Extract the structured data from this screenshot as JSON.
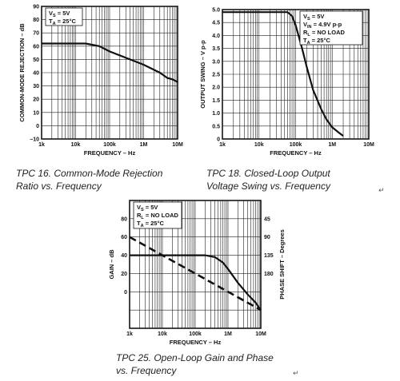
{
  "chart_data": [
    {
      "id": "tpc16",
      "type": "line",
      "caption": [
        "TPC 16.  Common-Mode Rejection",
        "Ratio vs. Frequency"
      ],
      "xlabel": "FREQUENCY – Hz",
      "ylabel": "COMMON-MODE REJECTION – dB",
      "xscale": "log",
      "xlim": [
        1000,
        10000000
      ],
      "ylim": [
        -10,
        90
      ],
      "xticks": [
        {
          "v": 1000,
          "t": "1k"
        },
        {
          "v": 10000,
          "t": "10k"
        },
        {
          "v": 100000,
          "t": "100k"
        },
        {
          "v": 1000000,
          "t": "1M"
        },
        {
          "v": 10000000,
          "t": "10M"
        }
      ],
      "yticks": [
        {
          "v": -10,
          "t": "–10"
        },
        {
          "v": 0,
          "t": "0"
        },
        {
          "v": 10,
          "t": "10"
        },
        {
          "v": 20,
          "t": "20"
        },
        {
          "v": 30,
          "t": "30"
        },
        {
          "v": 40,
          "t": "40"
        },
        {
          "v": 50,
          "t": "50"
        },
        {
          "v": 60,
          "t": "60"
        },
        {
          "v": 70,
          "t": "70"
        },
        {
          "v": 80,
          "t": "80"
        },
        {
          "v": 90,
          "t": "90"
        }
      ],
      "legend": [
        {
          "main": "V",
          "sub": "S",
          "rest": " = 5V"
        },
        {
          "main": "T",
          "sub": "A",
          "rest": " = 25°C"
        }
      ],
      "grid": true,
      "series": [
        {
          "style": "solid",
          "points": [
            [
              1000,
              62
            ],
            [
              20000,
              62
            ],
            [
              50000,
              60
            ],
            [
              100000,
              56
            ],
            [
              1000000,
              46
            ],
            [
              3000000,
              40
            ],
            [
              5000000,
              36
            ],
            [
              7000000,
              35
            ],
            [
              10000000,
              33
            ]
          ]
        }
      ]
    },
    {
      "id": "tpc18",
      "type": "line",
      "caption": [
        "TPC 18.  Closed-Loop Output",
        "Voltage Swing vs. Frequency"
      ],
      "xlabel": "FREQUENCY – Hz",
      "ylabel": "OUTPUT SWING – V p-p",
      "xscale": "log",
      "xlim": [
        1000,
        10000000
      ],
      "ylim": [
        0,
        5.0
      ],
      "xticks": [
        {
          "v": 1000,
          "t": "1k"
        },
        {
          "v": 10000,
          "t": "10k"
        },
        {
          "v": 100000,
          "t": "100k"
        },
        {
          "v": 1000000,
          "t": "1M"
        },
        {
          "v": 10000000,
          "t": "10M"
        }
      ],
      "yticks": [
        {
          "v": 0,
          "t": "0"
        },
        {
          "v": 0.5,
          "t": "0.5"
        },
        {
          "v": 1.0,
          "t": "1.0"
        },
        {
          "v": 1.5,
          "t": "1.5"
        },
        {
          "v": 2.0,
          "t": "2.0"
        },
        {
          "v": 2.5,
          "t": "2.5"
        },
        {
          "v": 3.0,
          "t": "3.0"
        },
        {
          "v": 3.5,
          "t": "3.5"
        },
        {
          "v": 4.0,
          "t": "4.0"
        },
        {
          "v": 4.5,
          "t": "4.5"
        },
        {
          "v": 5.0,
          "t": "5.0"
        }
      ],
      "legend": [
        {
          "main": "V",
          "sub": "S",
          "rest": " = 5V"
        },
        {
          "main": "V",
          "sub": "IN",
          "rest": " = 4.9V p-p"
        },
        {
          "main": "R",
          "sub": "L",
          "rest": " = NO LOAD"
        },
        {
          "main": "T",
          "sub": "A",
          "rest": " = 25°C"
        }
      ],
      "grid": true,
      "series": [
        {
          "style": "solid",
          "points": [
            [
              1000,
              4.9
            ],
            [
              60000,
              4.9
            ],
            [
              80000,
              4.75
            ],
            [
              100000,
              4.4
            ],
            [
              150000,
              3.5
            ],
            [
              200000,
              2.8
            ],
            [
              300000,
              1.9
            ],
            [
              500000,
              1.15
            ],
            [
              700000,
              0.75
            ],
            [
              1000000,
              0.45
            ],
            [
              1500000,
              0.25
            ],
            [
              2000000,
              0.12
            ]
          ]
        }
      ]
    },
    {
      "id": "tpc25",
      "type": "line",
      "caption": [
        "TPC 25.  Open-Loop Gain and Phase",
        "vs. Frequency"
      ],
      "xlabel": "FREQUENCY – Hz",
      "ylabel": "GAIN – dB",
      "y2label": "PHASE SHIFT – Degrees",
      "xscale": "log",
      "xlim": [
        1000,
        10000000
      ],
      "ylim": [
        -40,
        100
      ],
      "xticks": [
        {
          "v": 1000,
          "t": "1k"
        },
        {
          "v": 10000,
          "t": "10k"
        },
        {
          "v": 100000,
          "t": "100k"
        },
        {
          "v": 1000000,
          "t": "1M"
        },
        {
          "v": 10000000,
          "t": "10M"
        }
      ],
      "yticks": [
        {
          "v": 0,
          "t": "0"
        },
        {
          "v": 20,
          "t": "20"
        },
        {
          "v": 40,
          "t": "40"
        },
        {
          "v": 60,
          "t": "60"
        },
        {
          "v": 80,
          "t": "80"
        }
      ],
      "y2ticks": [
        {
          "v": 80,
          "t": "45"
        },
        {
          "v": 60,
          "t": "90"
        },
        {
          "v": 40,
          "t": "135"
        },
        {
          "v": 20,
          "t": "180"
        }
      ],
      "legend": [
        {
          "main": "V",
          "sub": "S",
          "rest": " = 5V"
        },
        {
          "main": "R",
          "sub": "L",
          "rest": " = NO LOAD"
        },
        {
          "main": "T",
          "sub": "A",
          "rest": " = 25°C"
        }
      ],
      "grid": true,
      "series": [
        {
          "style": "dashed",
          "points": [
            [
              1000,
              60
            ],
            [
              10000,
              40
            ],
            [
              100000,
              20
            ],
            [
              1000000,
              0
            ],
            [
              10000000,
              -20
            ]
          ]
        },
        {
          "style": "solid",
          "points": [
            [
              1000,
              40
            ],
            [
              10000,
              40
            ],
            [
              100000,
              40
            ],
            [
              200000,
              40
            ],
            [
              400000,
              38
            ],
            [
              700000,
              32
            ],
            [
              1000000,
              25
            ],
            [
              2000000,
              10
            ],
            [
              4000000,
              -3
            ],
            [
              7000000,
              -12
            ],
            [
              10000000,
              -20
            ]
          ]
        }
      ]
    }
  ]
}
